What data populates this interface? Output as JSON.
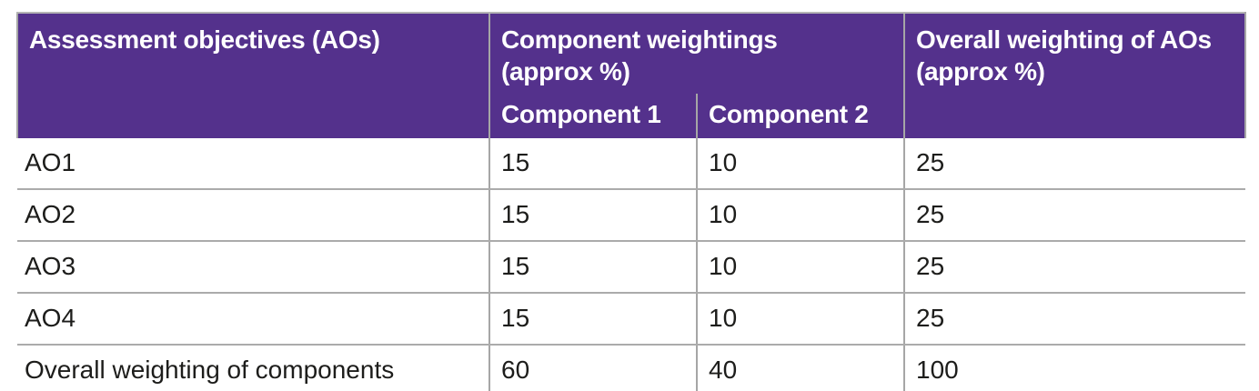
{
  "table": {
    "accent_color": "#54318C",
    "grid_color": "#A6A6A6",
    "header": {
      "assessment_objectives": "Assessment objectives (AOs)",
      "component_weightings": "Component weightings\n(approx %)",
      "component_1": "Component 1",
      "component_2": "Component 2",
      "overall_weighting": "Overall weighting of AOs\n(approx %)"
    },
    "rows": [
      {
        "label": "AO1",
        "component1": "15",
        "component2": "10",
        "overall": "25"
      },
      {
        "label": "AO2",
        "component1": "15",
        "component2": "10",
        "overall": "25"
      },
      {
        "label": "AO3",
        "component1": "15",
        "component2": "10",
        "overall": "25"
      },
      {
        "label": "AO4",
        "component1": "15",
        "component2": "10",
        "overall": "25"
      },
      {
        "label": "Overall weighting of components",
        "component1": "60",
        "component2": "40",
        "overall": "100"
      }
    ]
  }
}
